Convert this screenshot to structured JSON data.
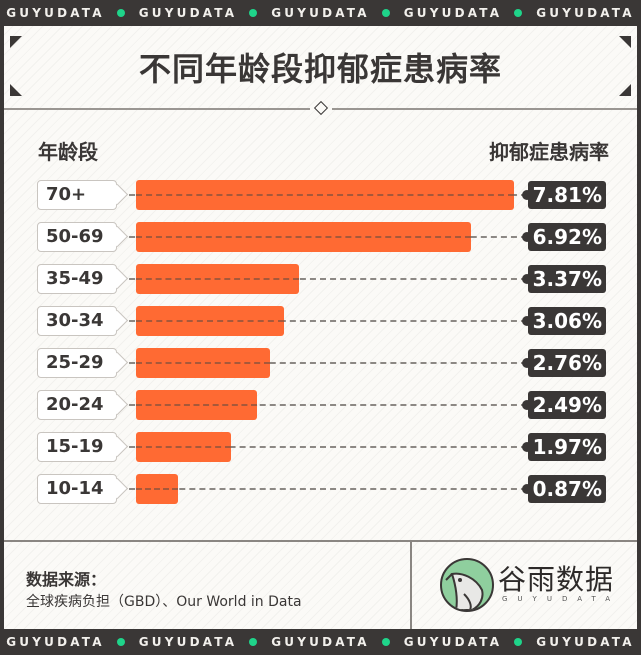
{
  "banner": {
    "text": "GUYUDATA",
    "repeat": 5,
    "dot_color": "#1fd48a"
  },
  "title": "不同年龄段抑郁症患病率",
  "headers": {
    "left": "年龄段",
    "right": "抑郁症患病率"
  },
  "rows": [
    {
      "label": "70+",
      "value": 7.81,
      "display": "7.81%"
    },
    {
      "label": "50-69",
      "value": 6.92,
      "display": "6.92%"
    },
    {
      "label": "35-49",
      "value": 3.37,
      "display": "3.37%"
    },
    {
      "label": "30-34",
      "value": 3.06,
      "display": "3.06%"
    },
    {
      "label": "25-29",
      "value": 2.76,
      "display": "2.76%"
    },
    {
      "label": "20-24",
      "value": 2.49,
      "display": "2.49%"
    },
    {
      "label": "15-19",
      "value": 1.97,
      "display": "1.97%"
    },
    {
      "label": "10-14",
      "value": 0.87,
      "display": "0.87%"
    }
  ],
  "footer": {
    "source_title": "数据来源：",
    "source_text": "全球疾病负担（GBD）、Our World in Data",
    "logo_text": "谷雨数据",
    "logo_sub": "GUYUDATA"
  },
  "colors": {
    "bar": "#ff6a33",
    "dark": "#3a3736",
    "accent": "#1fd48a",
    "background": "#fbfaf7"
  },
  "chart_data": {
    "type": "bar",
    "orientation": "horizontal",
    "title": "不同年龄段抑郁症患病率",
    "xlabel": "抑郁症患病率",
    "ylabel": "年龄段",
    "categories": [
      "70+",
      "50-69",
      "35-49",
      "30-34",
      "25-29",
      "20-24",
      "15-19",
      "10-14"
    ],
    "values": [
      7.81,
      6.92,
      3.37,
      3.06,
      2.76,
      2.49,
      1.97,
      0.87
    ],
    "unit": "%",
    "grid": false,
    "legend": "none",
    "source": "全球疾病负担（GBD）、Our World in Data"
  }
}
